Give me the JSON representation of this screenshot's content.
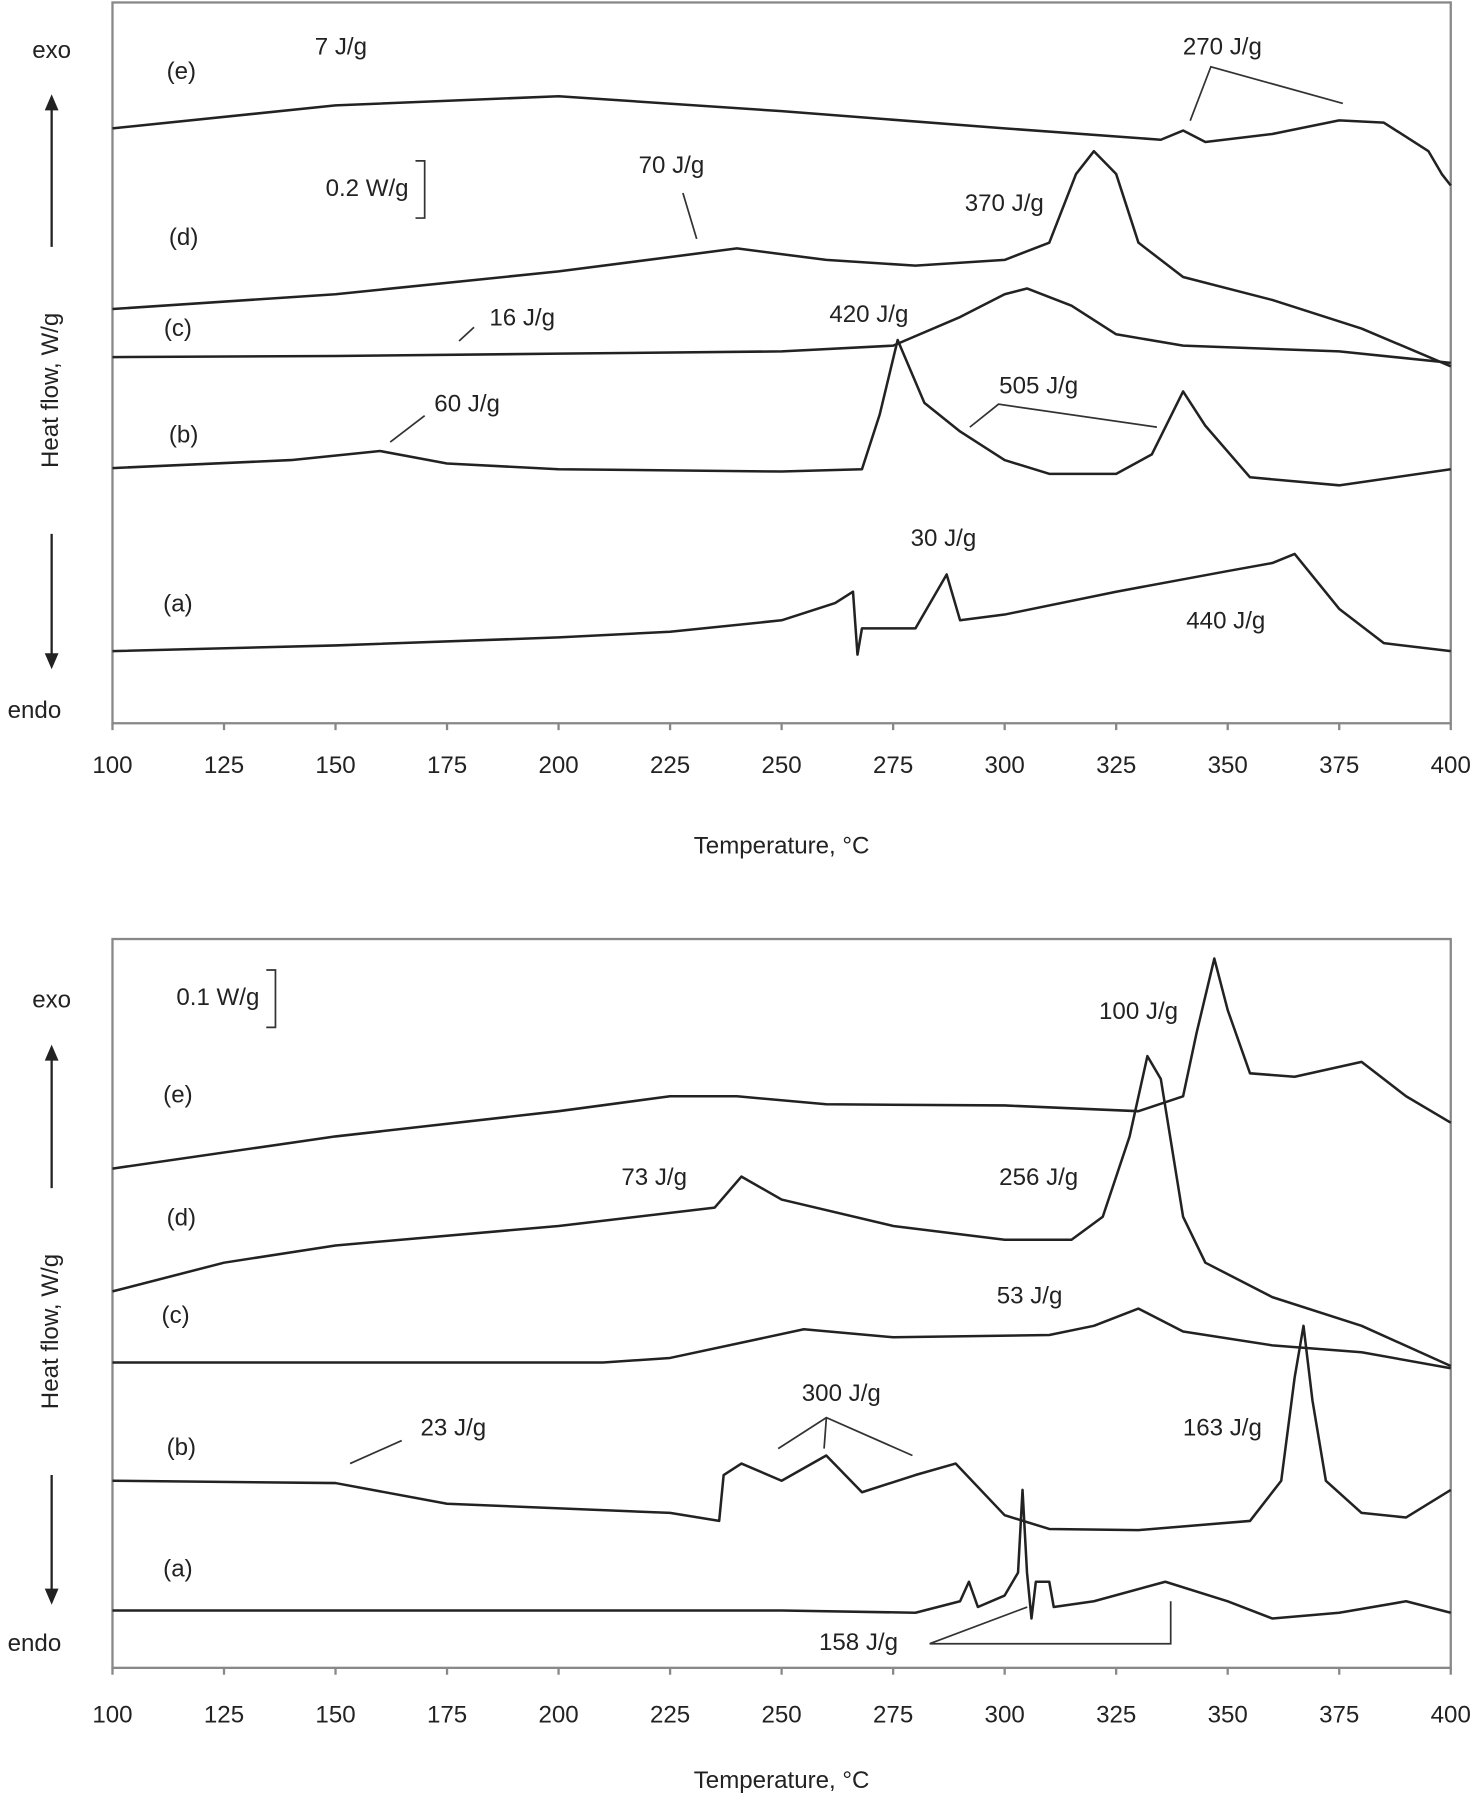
{
  "chart_data": [
    {
      "type": "line",
      "x_label": "Temperature, °C",
      "y_label": "Heat flow,  W/g",
      "top_label": "exo",
      "bottom_label": "endo",
      "xlim": [
        100,
        400
      ],
      "xticks": [
        100,
        125,
        150,
        175,
        200,
        225,
        250,
        275,
        300,
        325,
        350,
        375,
        400
      ],
      "ylim": [
        0,
        2.52
      ],
      "scale_bar": {
        "value": 0.2,
        "label": "0.2 W/g"
      },
      "annotations": [
        "7 J/g",
        "270 J/g",
        "70 J/g",
        "370 J/g",
        "16 J/g",
        "420 J/g",
        "505 J/g",
        "60 J/g",
        "30 J/g",
        "440 J/g"
      ],
      "series": [
        {
          "name": "(a)",
          "color": "#222222",
          "x": [
            100,
            150,
            200,
            225,
            250,
            262,
            266,
            267,
            268,
            280,
            287,
            290,
            300,
            325,
            350,
            360,
            365,
            375,
            385,
            400
          ],
          "values": [
            0.252,
            0.272,
            0.3,
            0.32,
            0.36,
            0.42,
            0.46,
            0.24,
            0.332,
            0.332,
            0.52,
            0.36,
            0.38,
            0.46,
            0.532,
            0.56,
            0.592,
            0.4,
            0.28,
            0.252
          ]
        },
        {
          "name": "(b)",
          "color": "#222222",
          "x": [
            100,
            140,
            160,
            175,
            200,
            250,
            268,
            272,
            276,
            282,
            290,
            300,
            310,
            325,
            333,
            340,
            345,
            355,
            375,
            400
          ],
          "values": [
            0.892,
            0.92,
            0.952,
            0.908,
            0.888,
            0.88,
            0.888,
            1.08,
            1.34,
            1.12,
            1.02,
            0.92,
            0.872,
            0.872,
            0.94,
            1.16,
            1.04,
            0.86,
            0.832,
            0.888
          ]
        },
        {
          "name": "(c)",
          "color": "#222222",
          "x": [
            100,
            150,
            200,
            250,
            275,
            290,
            300,
            305,
            315,
            325,
            340,
            375,
            400
          ],
          "values": [
            1.28,
            1.284,
            1.292,
            1.3,
            1.32,
            1.42,
            1.5,
            1.52,
            1.46,
            1.36,
            1.32,
            1.3,
            1.26
          ]
        },
        {
          "name": "(d)",
          "color": "#222222",
          "x": [
            100,
            150,
            200,
            240,
            260,
            280,
            300,
            310,
            316,
            320,
            325,
            330,
            340,
            360,
            380,
            400
          ],
          "values": [
            1.448,
            1.5,
            1.58,
            1.66,
            1.62,
            1.6,
            1.62,
            1.68,
            1.92,
            2.0,
            1.92,
            1.68,
            1.56,
            1.48,
            1.38,
            1.248
          ]
        },
        {
          "name": "(e)",
          "color": "#222222",
          "x": [
            100,
            150,
            200,
            250,
            300,
            335,
            340,
            345,
            360,
            375,
            385,
            395,
            398,
            400
          ],
          "values": [
            2.08,
            2.16,
            2.192,
            2.14,
            2.08,
            2.04,
            2.072,
            2.032,
            2.06,
            2.108,
            2.1,
            2.0,
            1.92,
            1.88
          ]
        }
      ]
    },
    {
      "type": "line",
      "x_label": "Temperature, °C",
      "y_label": "Heat flow,  W/g",
      "top_label": "exo",
      "bottom_label": "endo",
      "xlim": [
        100,
        400
      ],
      "xticks": [
        100,
        125,
        150,
        175,
        200,
        225,
        250,
        275,
        300,
        325,
        350,
        375,
        400
      ],
      "ylim": [
        0,
        1.27
      ],
      "scale_bar": {
        "value": 0.1,
        "label": "0.1 W/g"
      },
      "annotations": [
        "100 J/g",
        "73 J/g",
        "256 J/g",
        "53 J/g",
        "300 J/g",
        "23 J/g",
        "163 J/g",
        "158 J/g"
      ],
      "series": [
        {
          "name": "(a)",
          "color": "#222222",
          "x": [
            100,
            250,
            280,
            290,
            292,
            294,
            300,
            303,
            304,
            305,
            306,
            307,
            310,
            311,
            320,
            336,
            350,
            360,
            375,
            390,
            400
          ],
          "values": [
            0.1,
            0.1,
            0.096,
            0.116,
            0.15,
            0.106,
            0.126,
            0.166,
            0.31,
            0.166,
            0.086,
            0.15,
            0.15,
            0.106,
            0.116,
            0.15,
            0.116,
            0.086,
            0.096,
            0.116,
            0.096
          ]
        },
        {
          "name": "(b)",
          "color": "#222222",
          "x": [
            100,
            150,
            175,
            225,
            236,
            237,
            241,
            250,
            260,
            268,
            280,
            289,
            300,
            310,
            330,
            355,
            362,
            365,
            367,
            369,
            372,
            380,
            390,
            400
          ],
          "values": [
            0.326,
            0.322,
            0.286,
            0.27,
            0.256,
            0.336,
            0.356,
            0.326,
            0.37,
            0.306,
            0.336,
            0.356,
            0.266,
            0.242,
            0.24,
            0.256,
            0.326,
            0.506,
            0.596,
            0.466,
            0.326,
            0.27,
            0.262,
            0.31
          ]
        },
        {
          "name": "(c)",
          "color": "#222222",
          "x": [
            100,
            210,
            225,
            255,
            275,
            310,
            320,
            330,
            340,
            360,
            380,
            400
          ],
          "values": [
            0.532,
            0.532,
            0.54,
            0.59,
            0.576,
            0.58,
            0.596,
            0.626,
            0.586,
            0.562,
            0.55,
            0.522
          ]
        },
        {
          "name": "(d)",
          "color": "#222222",
          "x": [
            100,
            125,
            150,
            200,
            235,
            241,
            250,
            275,
            300,
            315,
            322,
            328,
            332,
            335,
            340,
            345,
            360,
            380,
            400
          ],
          "values": [
            0.656,
            0.706,
            0.736,
            0.77,
            0.802,
            0.856,
            0.816,
            0.77,
            0.746,
            0.746,
            0.786,
            0.926,
            1.066,
            1.026,
            0.786,
            0.706,
            0.646,
            0.596,
            0.526
          ]
        },
        {
          "name": "(e)",
          "color": "#222222",
          "x": [
            100,
            150,
            200,
            225,
            240,
            260,
            300,
            330,
            340,
            343,
            347,
            350,
            355,
            365,
            380,
            390,
            400
          ],
          "values": [
            0.87,
            0.926,
            0.97,
            0.996,
            0.996,
            0.982,
            0.98,
            0.97,
            0.996,
            1.106,
            1.236,
            1.146,
            1.036,
            1.03,
            1.056,
            0.996,
            0.95
          ]
        }
      ]
    }
  ]
}
